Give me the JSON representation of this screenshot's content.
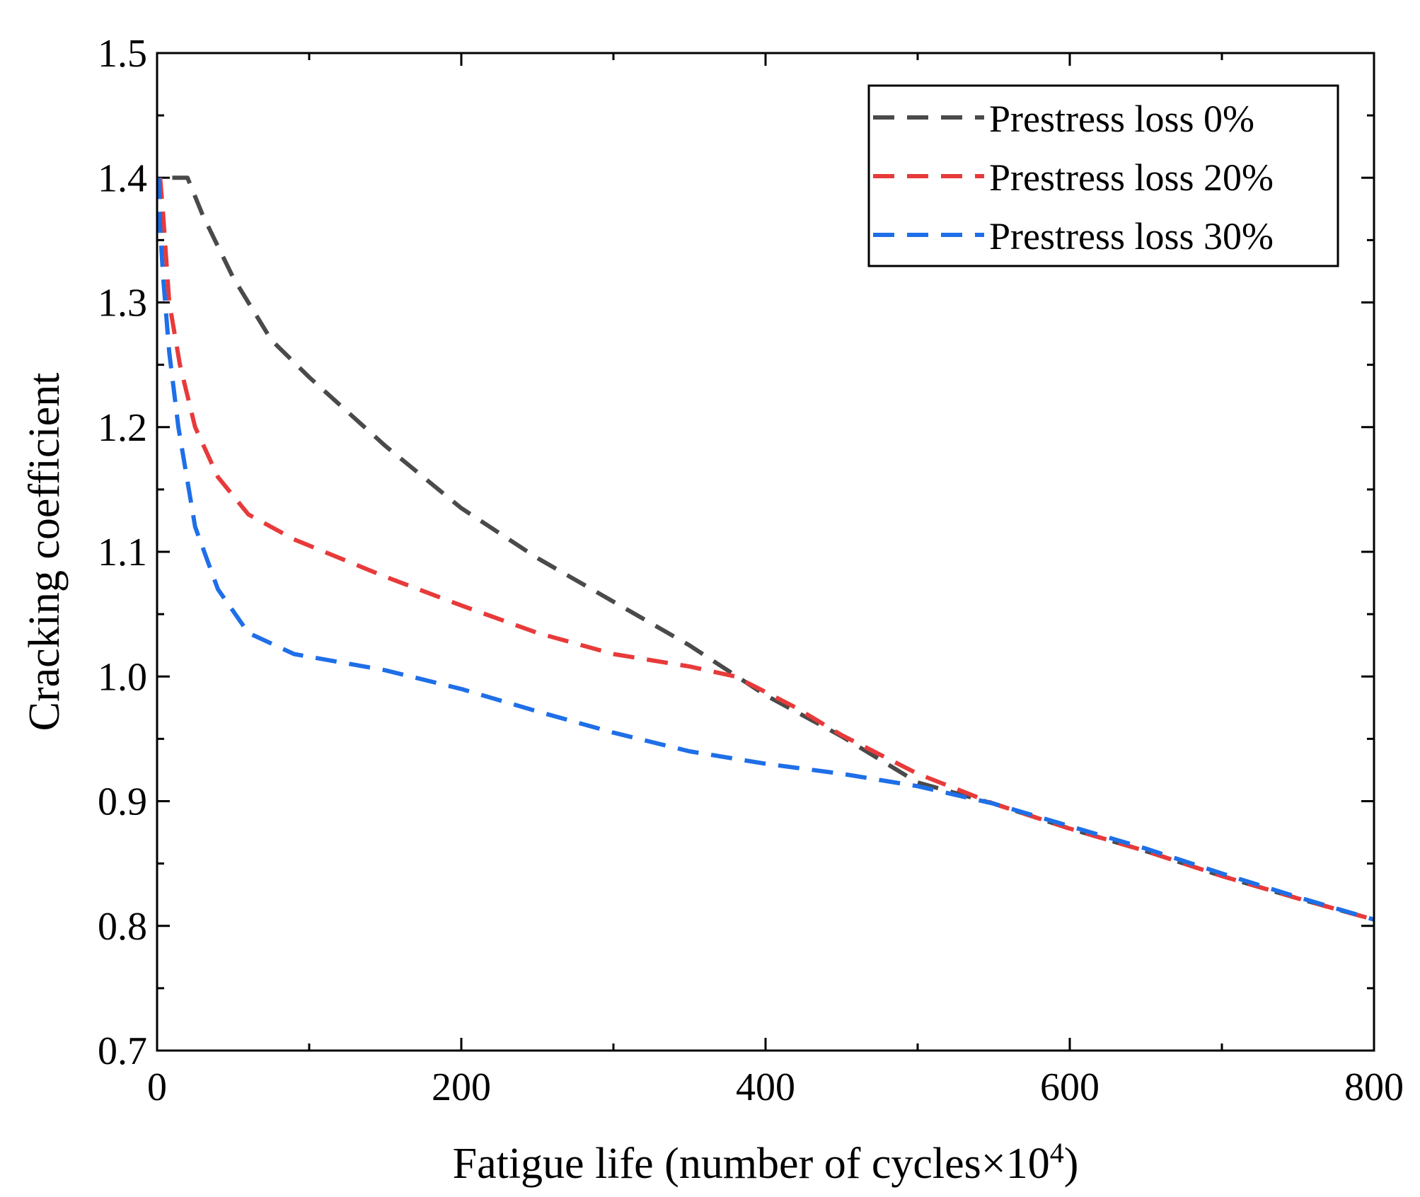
{
  "chart_data": {
    "type": "line",
    "title": "",
    "xlabel": "Fatigue life (number of cycles×10",
    "xlabel_superscript": "4",
    "xlabel_suffix": ")",
    "ylabel": "Cracking coefficient",
    "xlim": [
      0,
      800
    ],
    "ylim": [
      0.7,
      1.5
    ],
    "x_ticks": [
      0,
      200,
      400,
      600,
      800
    ],
    "x_tick_labels": [
      "0",
      "200",
      "400",
      "600",
      "800"
    ],
    "x_minor_ticks": [
      100,
      300,
      500,
      700
    ],
    "y_ticks": [
      0.7,
      0.8,
      0.9,
      1.0,
      1.1,
      1.2,
      1.3,
      1.4,
      1.5
    ],
    "y_tick_labels": [
      "0.7",
      "0.8",
      "0.9",
      "1.0",
      "1.1",
      "1.2",
      "1.3",
      "1.4",
      "1.5"
    ],
    "y_minor_ticks": [
      0.75,
      0.85,
      0.95,
      1.05,
      1.15,
      1.25,
      1.35,
      1.45
    ],
    "grid": false,
    "legend_position": "top-right",
    "series": [
      {
        "name": "Prestress loss 0%",
        "color": "#4a4a4a",
        "points": [
          [
            10,
            1.4
          ],
          [
            20,
            1.4
          ],
          [
            30,
            1.37
          ],
          [
            50,
            1.32
          ],
          [
            75,
            1.27
          ],
          [
            100,
            1.24
          ],
          [
            150,
            1.185
          ],
          [
            200,
            1.135
          ],
          [
            250,
            1.095
          ],
          [
            300,
            1.06
          ],
          [
            350,
            1.025
          ],
          [
            400,
            0.985
          ],
          [
            450,
            0.952
          ],
          [
            500,
            0.915
          ],
          [
            550,
            0.898
          ],
          [
            600,
            0.878
          ],
          [
            650,
            0.86
          ],
          [
            700,
            0.84
          ],
          [
            750,
            0.822
          ],
          [
            800,
            0.805
          ]
        ]
      },
      {
        "name": "Prestress loss 20%",
        "color": "#e83a3a",
        "points": [
          [
            2,
            1.4
          ],
          [
            4,
            1.37
          ],
          [
            8,
            1.3
          ],
          [
            15,
            1.25
          ],
          [
            25,
            1.2
          ],
          [
            40,
            1.16
          ],
          [
            60,
            1.13
          ],
          [
            90,
            1.11
          ],
          [
            150,
            1.08
          ],
          [
            200,
            1.057
          ],
          [
            250,
            1.035
          ],
          [
            300,
            1.018
          ],
          [
            350,
            1.008
          ],
          [
            380,
            1.0
          ],
          [
            420,
            0.975
          ],
          [
            450,
            0.953
          ],
          [
            500,
            0.922
          ],
          [
            550,
            0.898
          ],
          [
            600,
            0.878
          ],
          [
            650,
            0.86
          ],
          [
            700,
            0.84
          ],
          [
            750,
            0.822
          ],
          [
            800,
            0.805
          ]
        ]
      },
      {
        "name": "Prestress loss 30%",
        "color": "#1e6fe8",
        "points": [
          [
            1,
            1.4
          ],
          [
            2,
            1.36
          ],
          [
            4,
            1.32
          ],
          [
            8,
            1.26
          ],
          [
            14,
            1.2
          ],
          [
            25,
            1.12
          ],
          [
            40,
            1.07
          ],
          [
            60,
            1.035
          ],
          [
            90,
            1.018
          ],
          [
            150,
            1.005
          ],
          [
            200,
            0.99
          ],
          [
            250,
            0.972
          ],
          [
            300,
            0.955
          ],
          [
            350,
            0.94
          ],
          [
            400,
            0.93
          ],
          [
            450,
            0.922
          ],
          [
            500,
            0.912
          ],
          [
            550,
            0.898
          ],
          [
            600,
            0.88
          ],
          [
            650,
            0.862
          ],
          [
            700,
            0.842
          ],
          [
            750,
            0.823
          ],
          [
            800,
            0.805
          ]
        ]
      }
    ]
  }
}
